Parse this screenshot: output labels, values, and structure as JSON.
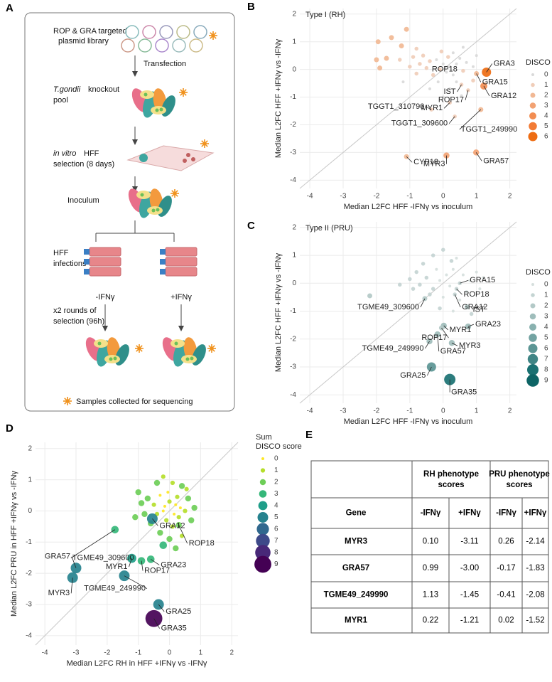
{
  "panel_labels": {
    "A": "A",
    "E": "E"
  },
  "diagram": {
    "library": [
      "ROP & GRA targeted",
      "plasmid library"
    ],
    "transfection": "Transfection",
    "pool": {
      "species": "T.gondii",
      "line1": "knockout",
      "line2": "pool"
    },
    "selection": {
      "qualifier": "in vitro",
      "line1": "HFF",
      "line2": "selection (8 days)"
    },
    "inoculum": "Inoculum",
    "infections": [
      "HFF",
      "infections"
    ],
    "minus": "-IFNγ",
    "plus": "+IFNγ",
    "rounds": [
      "x2 rounds of",
      "selection (96h)"
    ],
    "footnote": "Samples collected for sequencing"
  },
  "chart_data": [
    {
      "type": "scatter",
      "panel": "B",
      "title": "Type I (RH)",
      "x_label": "Median L2FC HFF -IFNγ vs inoculum",
      "y_label": "Median L2FC HFF +IFNγ vs -IFNγ",
      "xlim": [
        -4.3,
        2.2
      ],
      "ylim": [
        -4.3,
        2.2
      ],
      "xticks": [
        -4,
        -3,
        -2,
        -1,
        0,
        1,
        2
      ],
      "yticks": [
        -4,
        -3,
        -2,
        -1,
        0,
        1,
        2
      ],
      "grid": true,
      "diagonal": true,
      "x": [
        -1.1,
        -1.95,
        -1.55,
        -1.25,
        -0.8,
        -1.7,
        -2.0,
        -1.3,
        -1.9,
        -0.9,
        -0.6,
        -0.4,
        -0.5,
        -0.2,
        0.0,
        0.2,
        0.4,
        0.3,
        0.1,
        -0.1,
        -0.3,
        0.5,
        0.7,
        0.9,
        0.3,
        0.6,
        0.15,
        -0.7,
        -1.0,
        -0.15,
        0.4,
        0.2,
        -0.4,
        0.9,
        0.0,
        -1.2,
        -0.8,
        0.55,
        1.0,
        -0.05,
        1.3,
        1.0,
        0.6,
        0.55,
        0.75,
        1.22,
        0.2,
        -0.35,
        0.35,
        1.13,
        -1.1,
        0.1,
        0.99
      ],
      "y": [
        1.45,
        1.0,
        1.15,
        0.85,
        0.75,
        0.4,
        0.35,
        0.35,
        0.05,
        0.45,
        0.5,
        0.3,
        0.05,
        0.35,
        0.2,
        0.1,
        0.2,
        -0.2,
        -0.1,
        0.0,
        -0.2,
        0.4,
        0.25,
        0.1,
        0.6,
        0.8,
        0.45,
        0.2,
        0.1,
        -0.45,
        -0.45,
        -0.7,
        -0.7,
        -0.4,
        -1.0,
        -0.45,
        -0.15,
        -0.95,
        0.5,
        0.65,
        -0.1,
        -0.15,
        -0.05,
        -0.55,
        -0.75,
        -0.6,
        -1.2,
        -1.45,
        -1.7,
        -1.45,
        -3.15,
        -3.11,
        -3.0
      ],
      "disco": [
        2,
        2,
        2,
        2,
        1,
        2,
        2,
        1,
        2,
        1,
        1,
        1,
        1,
        0,
        0,
        0,
        0,
        0,
        0,
        1,
        1,
        0,
        0,
        0,
        0,
        0,
        1,
        1,
        1,
        0,
        0,
        0,
        0,
        1,
        0,
        0,
        1,
        0,
        0,
        1,
        6,
        2,
        1,
        1,
        1,
        4,
        1,
        1,
        1,
        2,
        2,
        3,
        3
      ],
      "labels": [
        null,
        null,
        null,
        null,
        null,
        null,
        null,
        null,
        null,
        null,
        null,
        null,
        null,
        null,
        null,
        null,
        null,
        null,
        null,
        null,
        null,
        null,
        null,
        null,
        null,
        null,
        null,
        null,
        null,
        null,
        null,
        null,
        null,
        null,
        null,
        null,
        null,
        null,
        null,
        null,
        "GRA3",
        "GRA15",
        "ROP18",
        "IST",
        "ROP17",
        "GRA12",
        "MYR1",
        "TGGT1_310790",
        "TGGT1_309600",
        "TGGT1_249990",
        "CYP18",
        "MYR3",
        "GRA57"
      ],
      "legend": {
        "title": [
          "DISCO"
        ],
        "levels": [
          0,
          1,
          2,
          3,
          4,
          5,
          6
        ],
        "colors": [
          "#d9d9d9",
          "#f0cdb8",
          "#f1b894",
          "#f2a273",
          "#f28d52",
          "#f27b35",
          "#ee6c12"
        ]
      }
    },
    {
      "type": "scatter",
      "panel": "C",
      "title": "Type II (PRU)",
      "x_label": "Median L2FC HFF -IFNγ vs inoculum",
      "y_label": "Median L2FC HFF +IFNγ vs -IFNγ",
      "xlim": [
        -4.3,
        2.2
      ],
      "ylim": [
        -4.3,
        2.2
      ],
      "xticks": [
        -4,
        -3,
        -2,
        -1,
        0,
        1,
        2
      ],
      "yticks": [
        -4,
        -3,
        -2,
        -1,
        0,
        1,
        2
      ],
      "grid": true,
      "diagonal": true,
      "x": [
        -2.2,
        -1.3,
        -1.0,
        -0.8,
        -0.6,
        -0.3,
        0.0,
        0.25,
        -0.2,
        0.1,
        0.3,
        0.6,
        0.8,
        1.0,
        -0.5,
        -0.1,
        0.2,
        -0.3,
        0.0,
        -0.4,
        0.5,
        0.7,
        -0.9,
        -0.1,
        0.3,
        1.1,
        0.4,
        -0.7,
        0.85,
        1.2,
        0.5,
        0.4,
        0.35,
        0.72,
        -0.55,
        0.02,
        0.75,
        -0.05,
        0.26,
        -0.17,
        -0.41,
        -0.35,
        0.2
      ],
      "y": [
        -0.45,
        -0.05,
        0.15,
        0.4,
        0.7,
        1.0,
        1.2,
        0.8,
        0.5,
        0.3,
        0.5,
        0.3,
        0.1,
        0.4,
        0.2,
        0.1,
        -0.1,
        -0.2,
        -0.5,
        -0.4,
        -0.6,
        -0.3,
        -0.2,
        -0.9,
        -1.0,
        -0.2,
        0.9,
        -0.05,
        -1.1,
        0.2,
        0.0,
        -0.2,
        -0.4,
        -0.85,
        -0.55,
        -1.52,
        -1.55,
        -1.6,
        -2.14,
        -1.83,
        -2.08,
        -3.0,
        -3.45
      ],
      "disco": [
        2,
        1,
        1,
        1,
        1,
        1,
        1,
        1,
        0,
        0,
        0,
        0,
        0,
        0,
        1,
        0,
        0,
        1,
        0,
        1,
        0,
        0,
        1,
        1,
        0,
        0,
        0,
        1,
        1,
        0,
        1,
        1,
        1,
        2,
        2,
        3,
        3,
        2,
        3,
        3,
        3,
        6,
        8
      ],
      "labels": [
        null,
        null,
        null,
        null,
        null,
        null,
        null,
        null,
        null,
        null,
        null,
        null,
        null,
        null,
        null,
        null,
        null,
        null,
        null,
        null,
        null,
        null,
        null,
        null,
        null,
        null,
        null,
        null,
        null,
        null,
        "GRA15",
        "ROP18",
        "GRA12",
        "IST",
        "TGME49_309600",
        "MYR1",
        "GRA23",
        "ROP17",
        "MYR3",
        "GRA57",
        "TGME49_249990",
        "GRA25",
        "GRA35"
      ],
      "legend": {
        "title": [
          "DISCO"
        ],
        "levels": [
          0,
          1,
          2,
          3,
          4,
          5,
          6,
          7,
          8,
          9
        ],
        "colors": [
          "#d6dfdd",
          "#c4d4d2",
          "#b3c9c7",
          "#9fbdbb",
          "#89b1af",
          "#73a3a2",
          "#5b9594",
          "#3f8585",
          "#1a7172",
          "#0d6465"
        ]
      }
    },
    {
      "type": "scatter",
      "panel": "D",
      "x_label": "Median L2FC RH in HFF +IFNγ vs -IFNγ",
      "y_label": "Median L2FC PRU in HFF +IFNγ vs -IFNγ",
      "xlim": [
        -4.3,
        2.2
      ],
      "ylim": [
        -4.3,
        2.2
      ],
      "xticks": [
        -4,
        -3,
        -2,
        -1,
        0,
        1,
        2
      ],
      "yticks": [
        -4,
        -3,
        -2,
        -1,
        0,
        1,
        2
      ],
      "grid": true,
      "diagonal": true,
      "x": [
        -1.0,
        -0.7,
        -0.4,
        -0.2,
        0.1,
        0.4,
        0.6,
        0.5,
        0.2,
        0.0,
        -0.2,
        -0.1,
        0.1,
        -0.3,
        0.3,
        -0.5,
        -0.8,
        -1.1,
        0.7,
        0.4,
        0.0,
        -0.3,
        -0.05,
        0.15,
        -0.15,
        0.25,
        -0.6,
        0.55,
        -0.4,
        0.8,
        -0.9,
        0.2,
        -0.2,
        0.35,
        -3.0,
        -3.11,
        -1.45,
        -1.21,
        -0.9,
        -0.6,
        -1.75,
        -0.55,
        0.3,
        -0.35,
        -0.5
      ],
      "y": [
        0.6,
        0.4,
        0.9,
        1.1,
        0.9,
        0.8,
        0.4,
        0.0,
        0.2,
        0.3,
        0.0,
        -0.3,
        -0.5,
        -0.7,
        -0.2,
        0.2,
        -0.1,
        -0.2,
        -0.3,
        -0.8,
        -0.9,
        0.5,
        0.6,
        -0.1,
        0.15,
        0.45,
        -0.4,
        0.7,
        -0.1,
        0.1,
        0.25,
        -1.2,
        -1.1,
        0.1,
        -1.83,
        -2.14,
        -2.08,
        -1.52,
        -1.6,
        -1.55,
        -0.6,
        -0.25,
        -0.45,
        -3.0,
        -3.45
      ],
      "disco": [
        2,
        2,
        2,
        1,
        1,
        2,
        2,
        1,
        0,
        1,
        0,
        1,
        1,
        2,
        1,
        1,
        2,
        2,
        2,
        1,
        2,
        0,
        0,
        0,
        0,
        1,
        2,
        1,
        1,
        2,
        2,
        2,
        3,
        0,
        5,
        5,
        5,
        4,
        3,
        3,
        3,
        5,
        2,
        5,
        9
      ],
      "labels": [
        null,
        null,
        null,
        null,
        null,
        null,
        null,
        null,
        null,
        null,
        null,
        null,
        null,
        null,
        null,
        null,
        null,
        null,
        null,
        null,
        null,
        null,
        null,
        null,
        null,
        null,
        null,
        null,
        null,
        null,
        null,
        null,
        null,
        null,
        "GRA57",
        "MYR3",
        "TGME49_249990",
        "MYR1",
        "ROP17",
        "GRA23",
        "TGME49_309600",
        "GRA12",
        "ROP18",
        "GRA25",
        "GRA35"
      ],
      "legend": {
        "title": [
          "Sum",
          "DISCO score"
        ],
        "levels": [
          0,
          1,
          2,
          3,
          4,
          5,
          6,
          7,
          8,
          9
        ],
        "colors": [
          "#fde725",
          "#b5de2b",
          "#6ece58",
          "#35b779",
          "#1f9e89",
          "#26828e",
          "#31688e",
          "#3e4989",
          "#482878",
          "#440154"
        ]
      }
    }
  ],
  "table": {
    "header_groups": [
      [
        "RH phenotype",
        "scores"
      ],
      [
        "PRU phenotype",
        "scores"
      ]
    ],
    "columns": [
      "Gene",
      "-IFNγ",
      "+IFNγ",
      "-IFNγ",
      "+IFNγ"
    ],
    "rows": [
      [
        "MYR3",
        "0.10",
        "-3.11",
        "0.26",
        "-2.14"
      ],
      [
        "GRA57",
        "0.99",
        "-3.00",
        "-0.17",
        "-1.83"
      ],
      [
        "TGME49_249990",
        "1.13",
        "-1.45",
        "-0.41",
        "-2.08"
      ],
      [
        "MYR1",
        "0.22",
        "-1.21",
        "0.02",
        "-1.52"
      ]
    ]
  }
}
